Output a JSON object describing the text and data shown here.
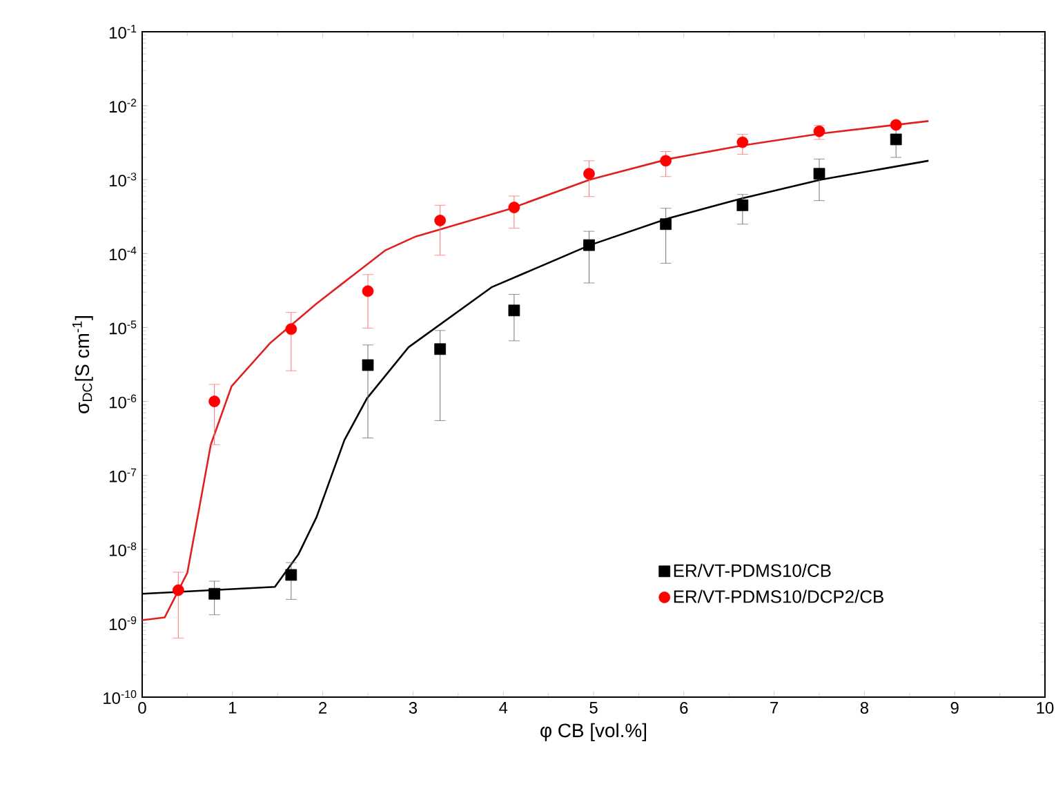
{
  "chart_data": {
    "type": "scatter",
    "xlabel": "φ CB [vol.%]",
    "ylabel": "σ$_{DC}$[S cm$^{-1}$]",
    "log": "y",
    "xlim": [
      0,
      10
    ],
    "xticks": [
      0,
      1,
      2,
      3,
      4,
      5,
      6,
      7,
      8,
      9,
      10
    ],
    "ylim": [
      1e-10,
      0.1
    ],
    "yticks": [
      {
        "value": 1e-10,
        "label": "10$^{-10}$"
      },
      {
        "value": 1e-09,
        "label": "10$^{-9}$"
      },
      {
        "value": 1e-08,
        "label": "10$^{-8}$"
      },
      {
        "value": 1e-07,
        "label": "10$^{-7}$"
      },
      {
        "value": 1e-06,
        "label": "10$^{-6}$"
      },
      {
        "value": 1e-05,
        "label": "10$^{-5}$"
      },
      {
        "value": 0.0001,
        "label": "10$^{-4}$"
      },
      {
        "value": 0.001,
        "label": "10$^{-3}$"
      },
      {
        "value": 0.01,
        "label": "10$^{-2}$"
      },
      {
        "value": 0.1,
        "label": "10$^{-1}$"
      }
    ],
    "legend": "bottom right",
    "series": [
      {
        "name": "ER/VT-PDMS10/CB",
        "marker": "square",
        "color": "#000000",
        "x": [
          0.8,
          1.65,
          2.5,
          3.3,
          4.12,
          4.95,
          5.8,
          6.65,
          7.5,
          8.35
        ],
        "values": [
          2.5e-09,
          4.5e-09,
          3.1e-06,
          5.1e-06,
          1.7e-05,
          0.00013,
          0.00025,
          0.00045,
          0.0012,
          0.0035
        ],
        "errors": [
          [
            1.3e-09,
            3.7e-09
          ],
          [
            2.1e-09,
            6.6e-09
          ],
          [
            3.2e-07,
            5.8e-06
          ],
          [
            5.5e-07,
            9.1e-06
          ],
          [
            6.6e-06,
            2.8e-05
          ],
          [
            4e-05,
            0.0002
          ],
          [
            7.4e-05,
            0.00041
          ],
          [
            0.00025,
            0.00063
          ],
          [
            0.00052,
            0.0019
          ],
          [
            0.002,
            0.0051
          ]
        ]
      },
      {
        "name": "ER/VT-PDMS10/DCP2/CB",
        "marker": "circle",
        "color": "#ff0000",
        "x": [
          0.4,
          0.8,
          1.65,
          2.5,
          3.3,
          4.12,
          4.95,
          5.8,
          6.65,
          7.5,
          8.35
        ],
        "values": [
          2.8e-09,
          1e-06,
          9.5e-06,
          3.1e-05,
          0.00028,
          0.00042,
          0.0012,
          0.0018,
          0.0032,
          0.0045,
          0.0055
        ],
        "errors": [
          [
            6.3e-10,
            4.9e-09
          ],
          [
            2.6e-07,
            1.7e-06
          ],
          [
            2.6e-06,
            1.6e-05
          ],
          [
            9.8e-06,
            5.2e-05
          ],
          [
            9.5e-05,
            0.00045
          ],
          [
            0.00022,
            0.0006
          ],
          [
            0.00059,
            0.0018
          ],
          [
            0.0011,
            0.0024
          ],
          [
            0.0022,
            0.0041
          ],
          [
            0.0035,
            0.0054
          ],
          null
        ]
      },
      {
        "type": "line",
        "color": "#000000",
        "x": [
          0,
          1.47,
          1.73,
          1.93,
          2.24,
          2.49,
          2.95,
          3.87,
          4.96,
          5.83,
          6.65,
          7.52,
          8.71
        ],
        "values": [
          2.5e-09,
          3.1e-09,
          8.5e-09,
          2.7e-08,
          3e-07,
          1.1e-06,
          5.4e-06,
          3.5e-05,
          0.00013,
          0.0003,
          0.00056,
          0.001,
          0.0018
        ]
      },
      {
        "type": "line",
        "color": "#e02020",
        "x": [
          0,
          0.25,
          0.5,
          0.63,
          0.76,
          0.99,
          1.42,
          1.93,
          2.69,
          3.03,
          4.04,
          4.96,
          5.83,
          6.65,
          7.52,
          8.71
        ],
        "values": [
          1.1e-09,
          1.2e-09,
          4.8e-09,
          3.5e-08,
          2.6e-07,
          1.6e-06,
          6.2e-06,
          2.1e-05,
          0.00011,
          0.00017,
          0.00039,
          0.001,
          0.0019,
          0.0029,
          0.0042,
          0.0062
        ]
      }
    ]
  }
}
